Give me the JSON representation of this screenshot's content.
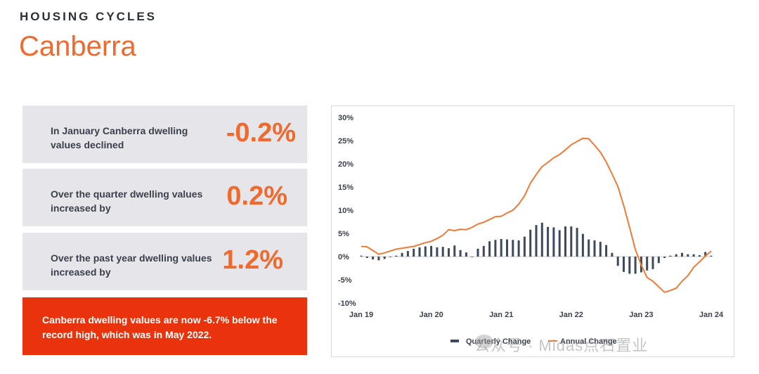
{
  "header": {
    "kicker": "HOUSING CYCLES",
    "title": "Canberra"
  },
  "cards": [
    {
      "text": "In January Canberra dwelling values declined",
      "value": "-0.2%"
    },
    {
      "text": "Over the quarter dwelling values increased by",
      "value": "0.2%"
    },
    {
      "text": "Over the past year dwelling values increased by",
      "value": "1.2%"
    }
  ],
  "banner": {
    "text": "Canberra dwelling values are now -6.7% below the record high, which was in May 2022."
  },
  "watermark": "公众号 · Midas点石置业",
  "colors": {
    "accent": "#ee6a2e",
    "banner": "#e8330c",
    "bars": "#3d4a5e",
    "line": "#ee7a35",
    "card_bg": "#e6e6ea"
  },
  "chart_data": {
    "type": "bar+line",
    "x_ticks": [
      "Jan 19",
      "Jan 20",
      "Jan 21",
      "Jan 22",
      "Jan 23",
      "Jan 24"
    ],
    "y_ticks": [
      "30%",
      "25%",
      "20%",
      "15%",
      "10%",
      "5%",
      "0%",
      "-5%",
      "-10%"
    ],
    "ylim": [
      -10,
      30
    ],
    "legend": [
      "Quarterly Change",
      "Annual Change"
    ],
    "legend_position": "bottom-center",
    "grid": false,
    "series": [
      {
        "name": "Quarterly Change",
        "type": "bar",
        "values": [
          0.2,
          -0.3,
          -0.6,
          -0.8,
          -0.5,
          -0.1,
          0.2,
          0.8,
          1.2,
          1.7,
          2.0,
          2.2,
          2.3,
          2.0,
          2.1,
          1.8,
          2.4,
          1.4,
          0.9,
          0.0,
          1.7,
          2.3,
          3.3,
          3.6,
          3.8,
          3.7,
          3.6,
          3.5,
          4.3,
          5.8,
          6.8,
          7.3,
          6.4,
          6.3,
          5.7,
          6.5,
          6.5,
          6.2,
          4.9,
          3.7,
          3.5,
          3.2,
          2.5,
          0.8,
          -2.0,
          -3.3,
          -3.7,
          -3.7,
          -3.4,
          -3.0,
          -2.7,
          -1.4,
          -0.3,
          0.2,
          0.5,
          0.8,
          0.5,
          0.5,
          0.3,
          1.0,
          0.2
        ]
      },
      {
        "name": "Annual Change",
        "type": "line",
        "values": [
          2.2,
          2.1,
          1.3,
          0.5,
          0.8,
          1.2,
          1.6,
          1.8,
          2.0,
          2.2,
          2.6,
          3.0,
          3.3,
          3.9,
          4.6,
          5.8,
          5.6,
          5.9,
          5.8,
          6.3,
          7.0,
          7.4,
          8.0,
          8.6,
          8.7,
          9.4,
          10.0,
          11.3,
          13.1,
          15.8,
          17.7,
          19.4,
          20.3,
          21.3,
          22.0,
          23.0,
          24.1,
          24.8,
          25.5,
          25.4,
          24.0,
          22.5,
          20.4,
          17.8,
          15.1,
          11.0,
          6.3,
          1.5,
          -1.8,
          -4.5,
          -5.3,
          -6.5,
          -7.7,
          -7.3,
          -6.8,
          -5.3,
          -4.1,
          -2.3,
          -1.1,
          0.1,
          1.2
        ]
      }
    ]
  }
}
